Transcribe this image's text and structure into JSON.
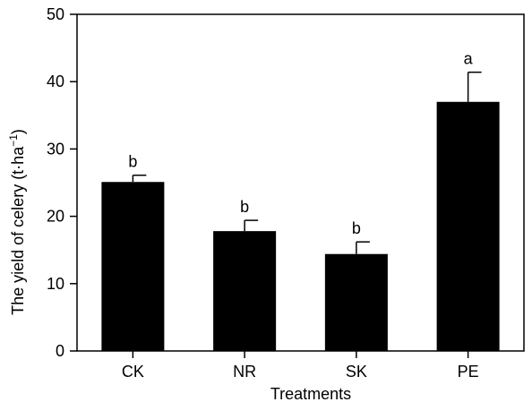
{
  "chart_data": {
    "type": "bar",
    "xlabel": "Treatments",
    "ylabel_prefix": "The yield of celery (t·ha",
    "ylabel_sup": "−1",
    "ylabel_suffix": ")",
    "ylim": [
      0,
      50
    ],
    "yticks": [
      0,
      10,
      20,
      30,
      40,
      50
    ],
    "categories": [
      "CK",
      "NR",
      "SK",
      "PE"
    ],
    "values": [
      25.1,
      17.8,
      14.4,
      37.0
    ],
    "errors": [
      1.0,
      1.6,
      1.8,
      4.4
    ],
    "significance_letters": [
      "b",
      "b",
      "b",
      "a"
    ],
    "bar_color": "#000000",
    "grid": false
  }
}
